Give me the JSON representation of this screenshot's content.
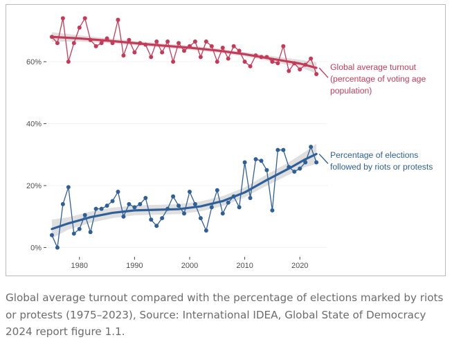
{
  "caption": "Global average turnout compared with the percentage of elections marked by riots or protests (1975–2023), Source: International IDEA, Global State of Democracy 2024 report figure 1.1.",
  "colors": {
    "turnout": "#c43b5a",
    "riots": "#2e5f96",
    "band": "#d9d9d9",
    "panel": "#ffffff",
    "grid": "#ececec"
  },
  "chart_data": {
    "type": "line",
    "title": "",
    "xlabel": "",
    "ylabel": "",
    "xlim": [
      1974,
      2025
    ],
    "ylim": [
      -0.03,
      0.77
    ],
    "x_ticks": [
      1980,
      1990,
      2000,
      2010,
      2020
    ],
    "y_ticks": [
      0,
      0.2,
      0.4,
      0.6
    ],
    "y_tick_labels": [
      "0%",
      "20%",
      "40%",
      "60%"
    ],
    "grid": false,
    "legend": "direct labels at right",
    "x": [
      1975,
      1976,
      1977,
      1978,
      1979,
      1980,
      1981,
      1982,
      1983,
      1984,
      1985,
      1986,
      1987,
      1988,
      1989,
      1990,
      1991,
      1992,
      1993,
      1994,
      1995,
      1996,
      1997,
      1998,
      1999,
      2000,
      2001,
      2002,
      2003,
      2004,
      2005,
      2006,
      2007,
      2008,
      2009,
      2010,
      2011,
      2012,
      2013,
      2014,
      2015,
      2016,
      2017,
      2018,
      2019,
      2020,
      2021,
      2022,
      2023
    ],
    "series": [
      {
        "name": "Global average turnout (percentage of voting age population)",
        "label_lines": [
          "Global average turnout",
          "(percentage of voting age",
          "population)"
        ],
        "color": "#c43b5a",
        "values": [
          0.68,
          0.66,
          0.74,
          0.6,
          0.66,
          0.71,
          0.74,
          0.67,
          0.65,
          0.66,
          0.675,
          0.66,
          0.735,
          0.62,
          0.67,
          0.63,
          0.66,
          0.655,
          0.615,
          0.665,
          0.63,
          0.665,
          0.6,
          0.66,
          0.635,
          0.65,
          0.665,
          0.615,
          0.665,
          0.65,
          0.6,
          0.645,
          0.61,
          0.65,
          0.635,
          0.6,
          0.585,
          0.62,
          0.615,
          0.615,
          0.6,
          0.595,
          0.65,
          0.57,
          0.595,
          0.575,
          0.59,
          0.61,
          0.56
        ],
        "trend": [
          [
            1975,
            0.68
          ],
          [
            1980,
            0.675
          ],
          [
            1985,
            0.668
          ],
          [
            1990,
            0.66
          ],
          [
            1995,
            0.652
          ],
          [
            2000,
            0.645
          ],
          [
            2005,
            0.636
          ],
          [
            2010,
            0.624
          ],
          [
            2015,
            0.609
          ],
          [
            2020,
            0.594
          ],
          [
            2023,
            0.58
          ]
        ],
        "band": [
          [
            1975,
            0.665,
            0.695
          ],
          [
            1980,
            0.665,
            0.685
          ],
          [
            1985,
            0.66,
            0.676
          ],
          [
            1990,
            0.653,
            0.667
          ],
          [
            1995,
            0.645,
            0.659
          ],
          [
            2000,
            0.638,
            0.652
          ],
          [
            2005,
            0.629,
            0.643
          ],
          [
            2010,
            0.617,
            0.631
          ],
          [
            2015,
            0.6,
            0.618
          ],
          [
            2020,
            0.582,
            0.606
          ],
          [
            2023,
            0.562,
            0.598
          ]
        ]
      },
      {
        "name": "Percentage of elections followed by riots or protests",
        "label_lines": [
          "Percentage of elections",
          "followed by riots or protests"
        ],
        "color": "#2e5f96",
        "values": [
          0.04,
          0.0,
          0.14,
          0.195,
          0.045,
          0.06,
          0.105,
          0.05,
          0.125,
          0.125,
          0.135,
          0.15,
          0.18,
          0.1,
          0.14,
          0.13,
          0.14,
          0.16,
          0.09,
          0.07,
          0.095,
          0.125,
          0.165,
          0.135,
          0.11,
          0.18,
          0.14,
          0.095,
          0.055,
          0.13,
          0.185,
          0.11,
          0.145,
          0.165,
          0.13,
          0.275,
          0.16,
          0.285,
          0.28,
          0.25,
          0.12,
          0.315,
          0.315,
          0.26,
          0.245,
          0.255,
          0.275,
          0.325,
          0.275
        ],
        "trend": [
          [
            1975,
            0.06
          ],
          [
            1978,
            0.078
          ],
          [
            1982,
            0.098
          ],
          [
            1986,
            0.112
          ],
          [
            1990,
            0.12
          ],
          [
            1994,
            0.122
          ],
          [
            1998,
            0.124
          ],
          [
            2002,
            0.133
          ],
          [
            2006,
            0.15
          ],
          [
            2010,
            0.178
          ],
          [
            2014,
            0.218
          ],
          [
            2018,
            0.255
          ],
          [
            2021,
            0.285
          ],
          [
            2023,
            0.302
          ]
        ],
        "band": [
          [
            1975,
            0.03,
            0.09
          ],
          [
            1978,
            0.058,
            0.098
          ],
          [
            1982,
            0.08,
            0.116
          ],
          [
            1986,
            0.095,
            0.129
          ],
          [
            1990,
            0.104,
            0.136
          ],
          [
            1994,
            0.106,
            0.138
          ],
          [
            1998,
            0.108,
            0.14
          ],
          [
            2002,
            0.117,
            0.149
          ],
          [
            2006,
            0.134,
            0.166
          ],
          [
            2010,
            0.162,
            0.194
          ],
          [
            2014,
            0.2,
            0.236
          ],
          [
            2018,
            0.235,
            0.275
          ],
          [
            2021,
            0.26,
            0.31
          ],
          [
            2023,
            0.27,
            0.335
          ]
        ]
      }
    ]
  }
}
